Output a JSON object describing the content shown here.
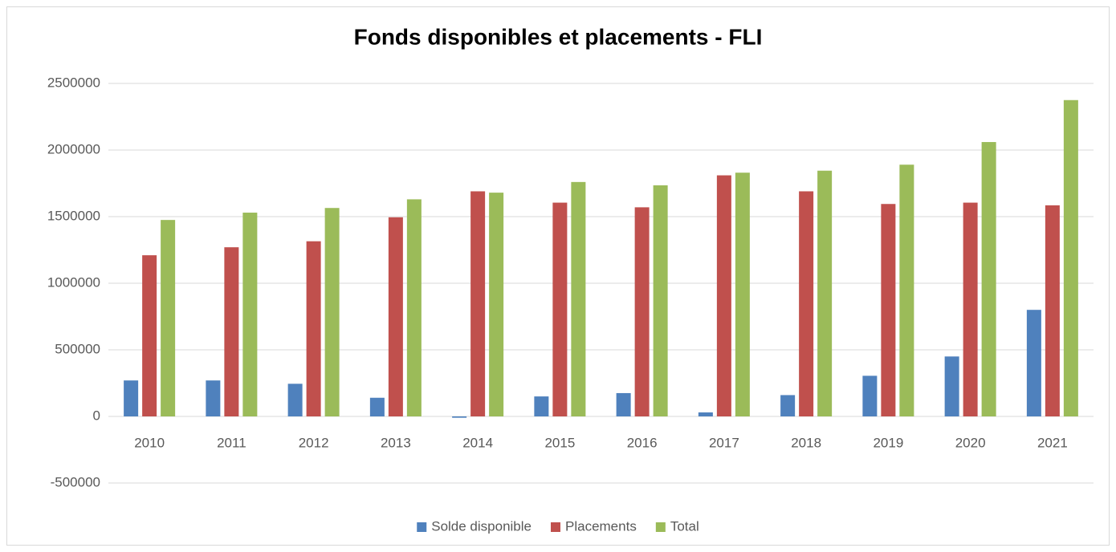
{
  "chart_data": {
    "type": "bar",
    "title": "Fonds disponibles et placements - FLI",
    "categories": [
      "2010",
      "2011",
      "2012",
      "2013",
      "2014",
      "2015",
      "2016",
      "2017",
      "2018",
      "2019",
      "2020",
      "2021"
    ],
    "series": [
      {
        "name": "Solde disponible",
        "color": "#4f81bd",
        "values": [
          270000,
          270000,
          245000,
          140000,
          -10000,
          150000,
          175000,
          30000,
          160000,
          305000,
          450000,
          800000
        ]
      },
      {
        "name": "Placements",
        "color": "#c0504d",
        "values": [
          1210000,
          1270000,
          1315000,
          1495000,
          1690000,
          1605000,
          1570000,
          1810000,
          1690000,
          1595000,
          1605000,
          1585000
        ]
      },
      {
        "name": "Total",
        "color": "#9bbb59",
        "values": [
          1475000,
          1530000,
          1565000,
          1630000,
          1680000,
          1760000,
          1735000,
          1830000,
          1845000,
          1890000,
          2060000,
          2375000
        ]
      }
    ],
    "ylim": [
      -500000,
      2500000
    ],
    "yticks": [
      -500000,
      0,
      500000,
      1000000,
      1500000,
      2000000,
      2500000
    ],
    "grid": true,
    "legend": "bottom"
  }
}
